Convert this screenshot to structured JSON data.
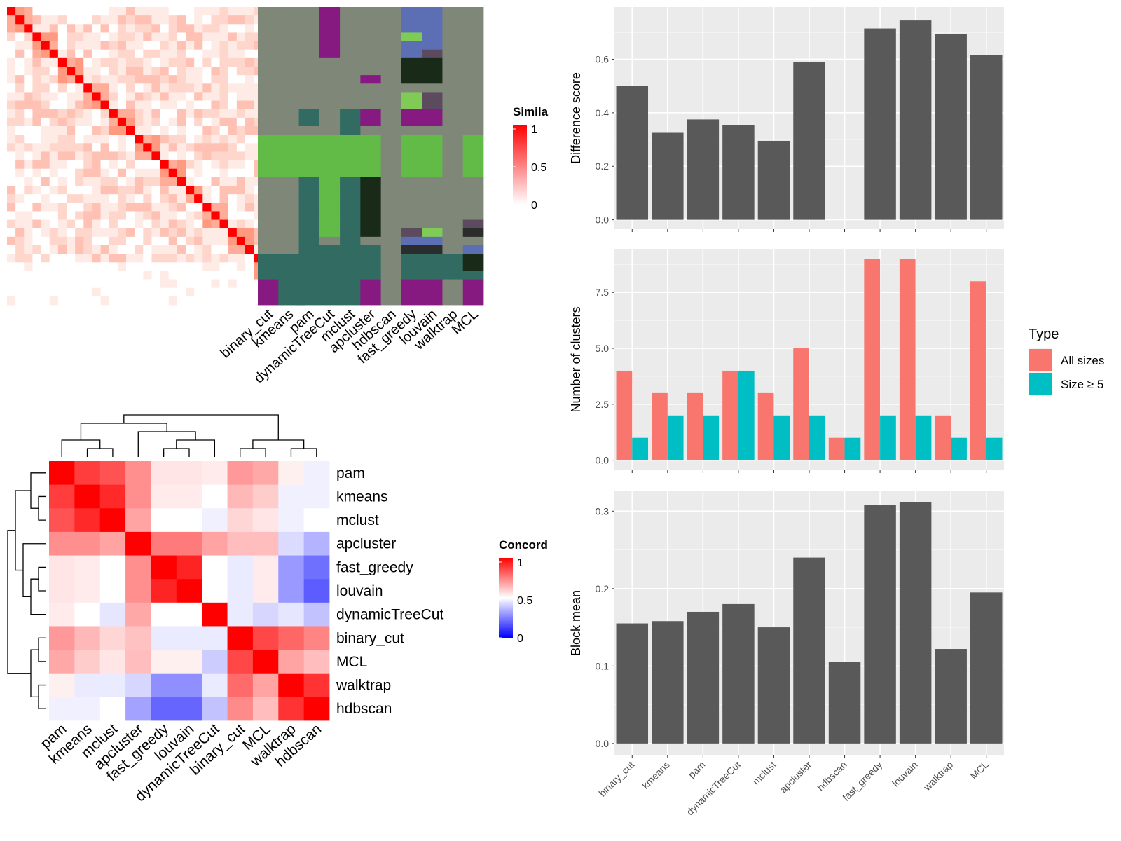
{
  "chart_data": [
    {
      "type": "heatmap",
      "title": "",
      "legend": {
        "title": "Simila",
        "ticks": [
          "1",
          "0.5",
          "0"
        ],
        "colors": [
          "#ffffff",
          "#ff0000"
        ]
      },
      "n": 35,
      "block_sizes": [
        3,
        3,
        3,
        3,
        3,
        3,
        3,
        2,
        3,
        3,
        3,
        3
      ],
      "palette": [
        "#ffebe6",
        "#ffd6cc",
        "#ffc1b3",
        "#ffad99",
        "#ff9980",
        "#ffffff"
      ],
      "diagonal_color": "#ff0000"
    },
    {
      "type": "heatmap",
      "title": "",
      "columns": [
        "binary_cut",
        "kmeans",
        "pam",
        "dynamicTreeCut",
        "mclust",
        "apcluster",
        "hdbscan",
        "fast_greedy",
        "louvain",
        "walktrap",
        "MCL"
      ],
      "rows": 35,
      "colors": {
        "grey": "#7f8779",
        "purple": "#861a80",
        "green": "#62bb47",
        "teal": "#326b61",
        "dark": "#1a2a19",
        "blue": "#5c6fb5",
        "lgreen": "#7fcb56",
        "plum": "#5c4a5e",
        "black": "#2b2c2c"
      },
      "cells": [
        [
          "grey",
          "grey",
          "grey",
          "purple",
          "grey",
          "grey",
          "grey",
          "blue",
          "blue",
          "grey",
          "grey"
        ],
        [
          "grey",
          "grey",
          "grey",
          "purple",
          "grey",
          "grey",
          "grey",
          "blue",
          "blue",
          "grey",
          "grey"
        ],
        [
          "grey",
          "grey",
          "grey",
          "purple",
          "grey",
          "grey",
          "grey",
          "blue",
          "blue",
          "grey",
          "grey"
        ],
        [
          "grey",
          "grey",
          "grey",
          "purple",
          "grey",
          "grey",
          "grey",
          "lgreen",
          "blue",
          "grey",
          "grey"
        ],
        [
          "grey",
          "grey",
          "grey",
          "purple",
          "grey",
          "grey",
          "grey",
          "blue",
          "blue",
          "grey",
          "grey"
        ],
        [
          "grey",
          "grey",
          "grey",
          "purple",
          "grey",
          "grey",
          "grey",
          "blue",
          "plum",
          "grey",
          "grey"
        ],
        [
          "grey",
          "grey",
          "grey",
          "grey",
          "grey",
          "grey",
          "grey",
          "dark",
          "dark",
          "grey",
          "grey"
        ],
        [
          "grey",
          "grey",
          "grey",
          "grey",
          "grey",
          "grey",
          "grey",
          "dark",
          "dark",
          "grey",
          "grey"
        ],
        [
          "grey",
          "grey",
          "grey",
          "grey",
          "grey",
          "purple",
          "grey",
          "dark",
          "dark",
          "grey",
          "grey"
        ],
        [
          "grey",
          "grey",
          "grey",
          "grey",
          "grey",
          "grey",
          "grey",
          "grey",
          "grey",
          "grey",
          "grey"
        ],
        [
          "grey",
          "grey",
          "grey",
          "grey",
          "grey",
          "grey",
          "grey",
          "lgreen",
          "plum",
          "grey",
          "grey"
        ],
        [
          "grey",
          "grey",
          "grey",
          "grey",
          "grey",
          "grey",
          "grey",
          "lgreen",
          "plum",
          "grey",
          "grey"
        ],
        [
          "grey",
          "grey",
          "teal",
          "grey",
          "teal",
          "purple",
          "grey",
          "purple",
          "purple",
          "grey",
          "grey"
        ],
        [
          "grey",
          "grey",
          "teal",
          "grey",
          "teal",
          "purple",
          "grey",
          "purple",
          "purple",
          "grey",
          "grey"
        ],
        [
          "grey",
          "grey",
          "grey",
          "grey",
          "teal",
          "grey",
          "grey",
          "grey",
          "grey",
          "grey",
          "grey"
        ],
        [
          "green",
          "green",
          "green",
          "green",
          "green",
          "green",
          "grey",
          "green",
          "green",
          "grey",
          "green"
        ],
        [
          "green",
          "green",
          "green",
          "green",
          "green",
          "green",
          "grey",
          "green",
          "green",
          "grey",
          "green"
        ],
        [
          "green",
          "green",
          "green",
          "green",
          "green",
          "green",
          "grey",
          "green",
          "green",
          "grey",
          "green"
        ],
        [
          "green",
          "green",
          "green",
          "green",
          "green",
          "green",
          "grey",
          "green",
          "green",
          "grey",
          "green"
        ],
        [
          "green",
          "green",
          "green",
          "green",
          "green",
          "green",
          "grey",
          "green",
          "green",
          "grey",
          "green"
        ],
        [
          "grey",
          "grey",
          "teal",
          "green",
          "teal",
          "dark",
          "grey",
          "grey",
          "grey",
          "grey",
          "grey"
        ],
        [
          "grey",
          "grey",
          "teal",
          "green",
          "teal",
          "dark",
          "grey",
          "grey",
          "grey",
          "grey",
          "grey"
        ],
        [
          "grey",
          "grey",
          "teal",
          "green",
          "teal",
          "dark",
          "grey",
          "grey",
          "grey",
          "grey",
          "grey"
        ],
        [
          "grey",
          "grey",
          "teal",
          "green",
          "teal",
          "dark",
          "grey",
          "grey",
          "grey",
          "grey",
          "grey"
        ],
        [
          "grey",
          "grey",
          "teal",
          "green",
          "teal",
          "dark",
          "grey",
          "grey",
          "grey",
          "grey",
          "grey"
        ],
        [
          "grey",
          "grey",
          "teal",
          "green",
          "teal",
          "dark",
          "grey",
          "grey",
          "grey",
          "grey",
          "plum"
        ],
        [
          "grey",
          "grey",
          "teal",
          "green",
          "teal",
          "dark",
          "grey",
          "plum",
          "lgreen",
          "grey",
          "black"
        ],
        [
          "grey",
          "grey",
          "teal",
          "grey",
          "teal",
          "grey",
          "grey",
          "blue",
          "blue",
          "grey",
          "grey"
        ],
        [
          "grey",
          "grey",
          "teal",
          "teal",
          "teal",
          "teal",
          "grey",
          "black",
          "black",
          "grey",
          "blue"
        ],
        [
          "teal",
          "teal",
          "teal",
          "teal",
          "teal",
          "teal",
          "grey",
          "teal",
          "teal",
          "teal",
          "dark"
        ],
        [
          "teal",
          "teal",
          "teal",
          "teal",
          "teal",
          "teal",
          "grey",
          "teal",
          "teal",
          "teal",
          "dark"
        ],
        [
          "teal",
          "teal",
          "teal",
          "teal",
          "teal",
          "teal",
          "grey",
          "teal",
          "teal",
          "teal",
          "teal"
        ],
        [
          "purple",
          "teal",
          "teal",
          "teal",
          "teal",
          "purple",
          "grey",
          "purple",
          "purple",
          "grey",
          "purple"
        ],
        [
          "purple",
          "teal",
          "teal",
          "teal",
          "teal",
          "purple",
          "grey",
          "purple",
          "purple",
          "grey",
          "purple"
        ],
        [
          "purple",
          "teal",
          "teal",
          "teal",
          "teal",
          "purple",
          "grey",
          "purple",
          "purple",
          "grey",
          "purple"
        ]
      ]
    },
    {
      "type": "heatmap",
      "title": "",
      "legend": {
        "title": "Concord",
        "ticks": [
          "1",
          "0.5",
          "0"
        ],
        "colors": [
          "#0000ff",
          "#ffffff",
          "#ff0000"
        ]
      },
      "rows": [
        "pam",
        "kmeans",
        "mclust",
        "apcluster",
        "fast_greedy",
        "louvain",
        "dynamicTreeCut",
        "binary_cut",
        "MCL",
        "walktrap",
        "hdbscan"
      ],
      "columns": [
        "pam",
        "kmeans",
        "mclust",
        "apcluster",
        "fast_greedy",
        "louvain",
        "dynamicTreeCut",
        "binary_cut",
        "MCL",
        "walktrap",
        "hdbscan"
      ],
      "values": [
        [
          1.0,
          0.88,
          0.84,
          0.72,
          0.55,
          0.55,
          0.54,
          0.7,
          0.67,
          0.53,
          0.47
        ],
        [
          0.88,
          1.0,
          0.92,
          0.72,
          0.54,
          0.54,
          0.5,
          0.64,
          0.6,
          0.47,
          0.47
        ],
        [
          0.84,
          0.92,
          1.0,
          0.68,
          0.5,
          0.5,
          0.47,
          0.58,
          0.55,
          0.47,
          0.5
        ],
        [
          0.72,
          0.72,
          0.68,
          1.0,
          0.76,
          0.76,
          0.68,
          0.63,
          0.63,
          0.43,
          0.35
        ],
        [
          0.55,
          0.54,
          0.5,
          0.72,
          1.0,
          0.93,
          0.5,
          0.46,
          0.54,
          0.3,
          0.22
        ],
        [
          0.55,
          0.54,
          0.5,
          0.72,
          0.93,
          1.0,
          0.5,
          0.46,
          0.54,
          0.3,
          0.18
        ],
        [
          0.54,
          0.5,
          0.45,
          0.67,
          0.5,
          0.5,
          1.0,
          0.46,
          0.42,
          0.45,
          0.38
        ],
        [
          0.7,
          0.64,
          0.58,
          0.62,
          0.46,
          0.46,
          0.46,
          1.0,
          0.86,
          0.8,
          0.74
        ],
        [
          0.67,
          0.6,
          0.55,
          0.63,
          0.53,
          0.53,
          0.4,
          0.86,
          1.0,
          0.68,
          0.63
        ],
        [
          0.53,
          0.46,
          0.46,
          0.42,
          0.28,
          0.28,
          0.46,
          0.79,
          0.68,
          1.0,
          0.9
        ],
        [
          0.47,
          0.47,
          0.5,
          0.32,
          0.2,
          0.2,
          0.38,
          0.73,
          0.63,
          0.9,
          1.0
        ]
      ]
    },
    {
      "type": "bar",
      "title": "",
      "categories": [
        "binary_cut",
        "kmeans",
        "pam",
        "dynamicTreeCut",
        "mclust",
        "apcluster",
        "hdbscan",
        "fast_greedy",
        "louvain",
        "walktrap",
        "MCL"
      ],
      "values": [
        0.5,
        0.325,
        0.375,
        0.355,
        0.295,
        0.59,
        null,
        0.715,
        0.745,
        0.695,
        0.615
      ],
      "xlabel": "",
      "ylabel": "Difference score",
      "ylim": [
        -0.035,
        0.795
      ],
      "yticks": [
        0.0,
        0.2,
        0.4,
        0.6
      ],
      "ytick_labels": [
        "0.0",
        "0.2",
        "0.4",
        "0.6"
      ],
      "bar_color": "#595959"
    },
    {
      "type": "bar",
      "title": "",
      "categories": [
        "binary_cut",
        "kmeans",
        "pam",
        "dynamicTreeCut",
        "mclust",
        "apcluster",
        "hdbscan",
        "fast_greedy",
        "louvain",
        "walktrap",
        "MCL"
      ],
      "series": [
        {
          "name": "All sizes",
          "values": [
            4,
            3,
            3,
            4,
            3,
            5,
            1,
            9,
            9,
            2,
            8
          ],
          "color": "#f8766d"
        },
        {
          "name": "Size ≥ 5",
          "values": [
            1,
            2,
            2,
            4,
            2,
            2,
            1,
            2,
            2,
            1,
            1
          ],
          "color": "#00bfc4"
        }
      ],
      "xlabel": "",
      "ylabel": "Number of clusters",
      "ylim": [
        -0.45,
        9.45
      ],
      "yticks": [
        0.0,
        2.5,
        5.0,
        7.5
      ],
      "ytick_labels": [
        "0.0",
        "2.5",
        "5.0",
        "7.5"
      ],
      "legend": {
        "title": "Type",
        "placement": "right"
      }
    },
    {
      "type": "bar",
      "title": "",
      "categories": [
        "binary_cut",
        "kmeans",
        "pam",
        "dynamicTreeCut",
        "mclust",
        "apcluster",
        "hdbscan",
        "fast_greedy",
        "louvain",
        "walktrap",
        "MCL"
      ],
      "values": [
        0.155,
        0.158,
        0.17,
        0.18,
        0.15,
        0.24,
        0.105,
        0.308,
        0.312,
        0.122,
        0.195
      ],
      "xlabel": "",
      "ylabel": "Block mean",
      "ylim": [
        -0.0155,
        0.3265
      ],
      "yticks": [
        0.0,
        0.1,
        0.2,
        0.3
      ],
      "ytick_labels": [
        "0.0",
        "0.1",
        "0.2",
        "0.3"
      ],
      "bar_color": "#595959"
    }
  ]
}
